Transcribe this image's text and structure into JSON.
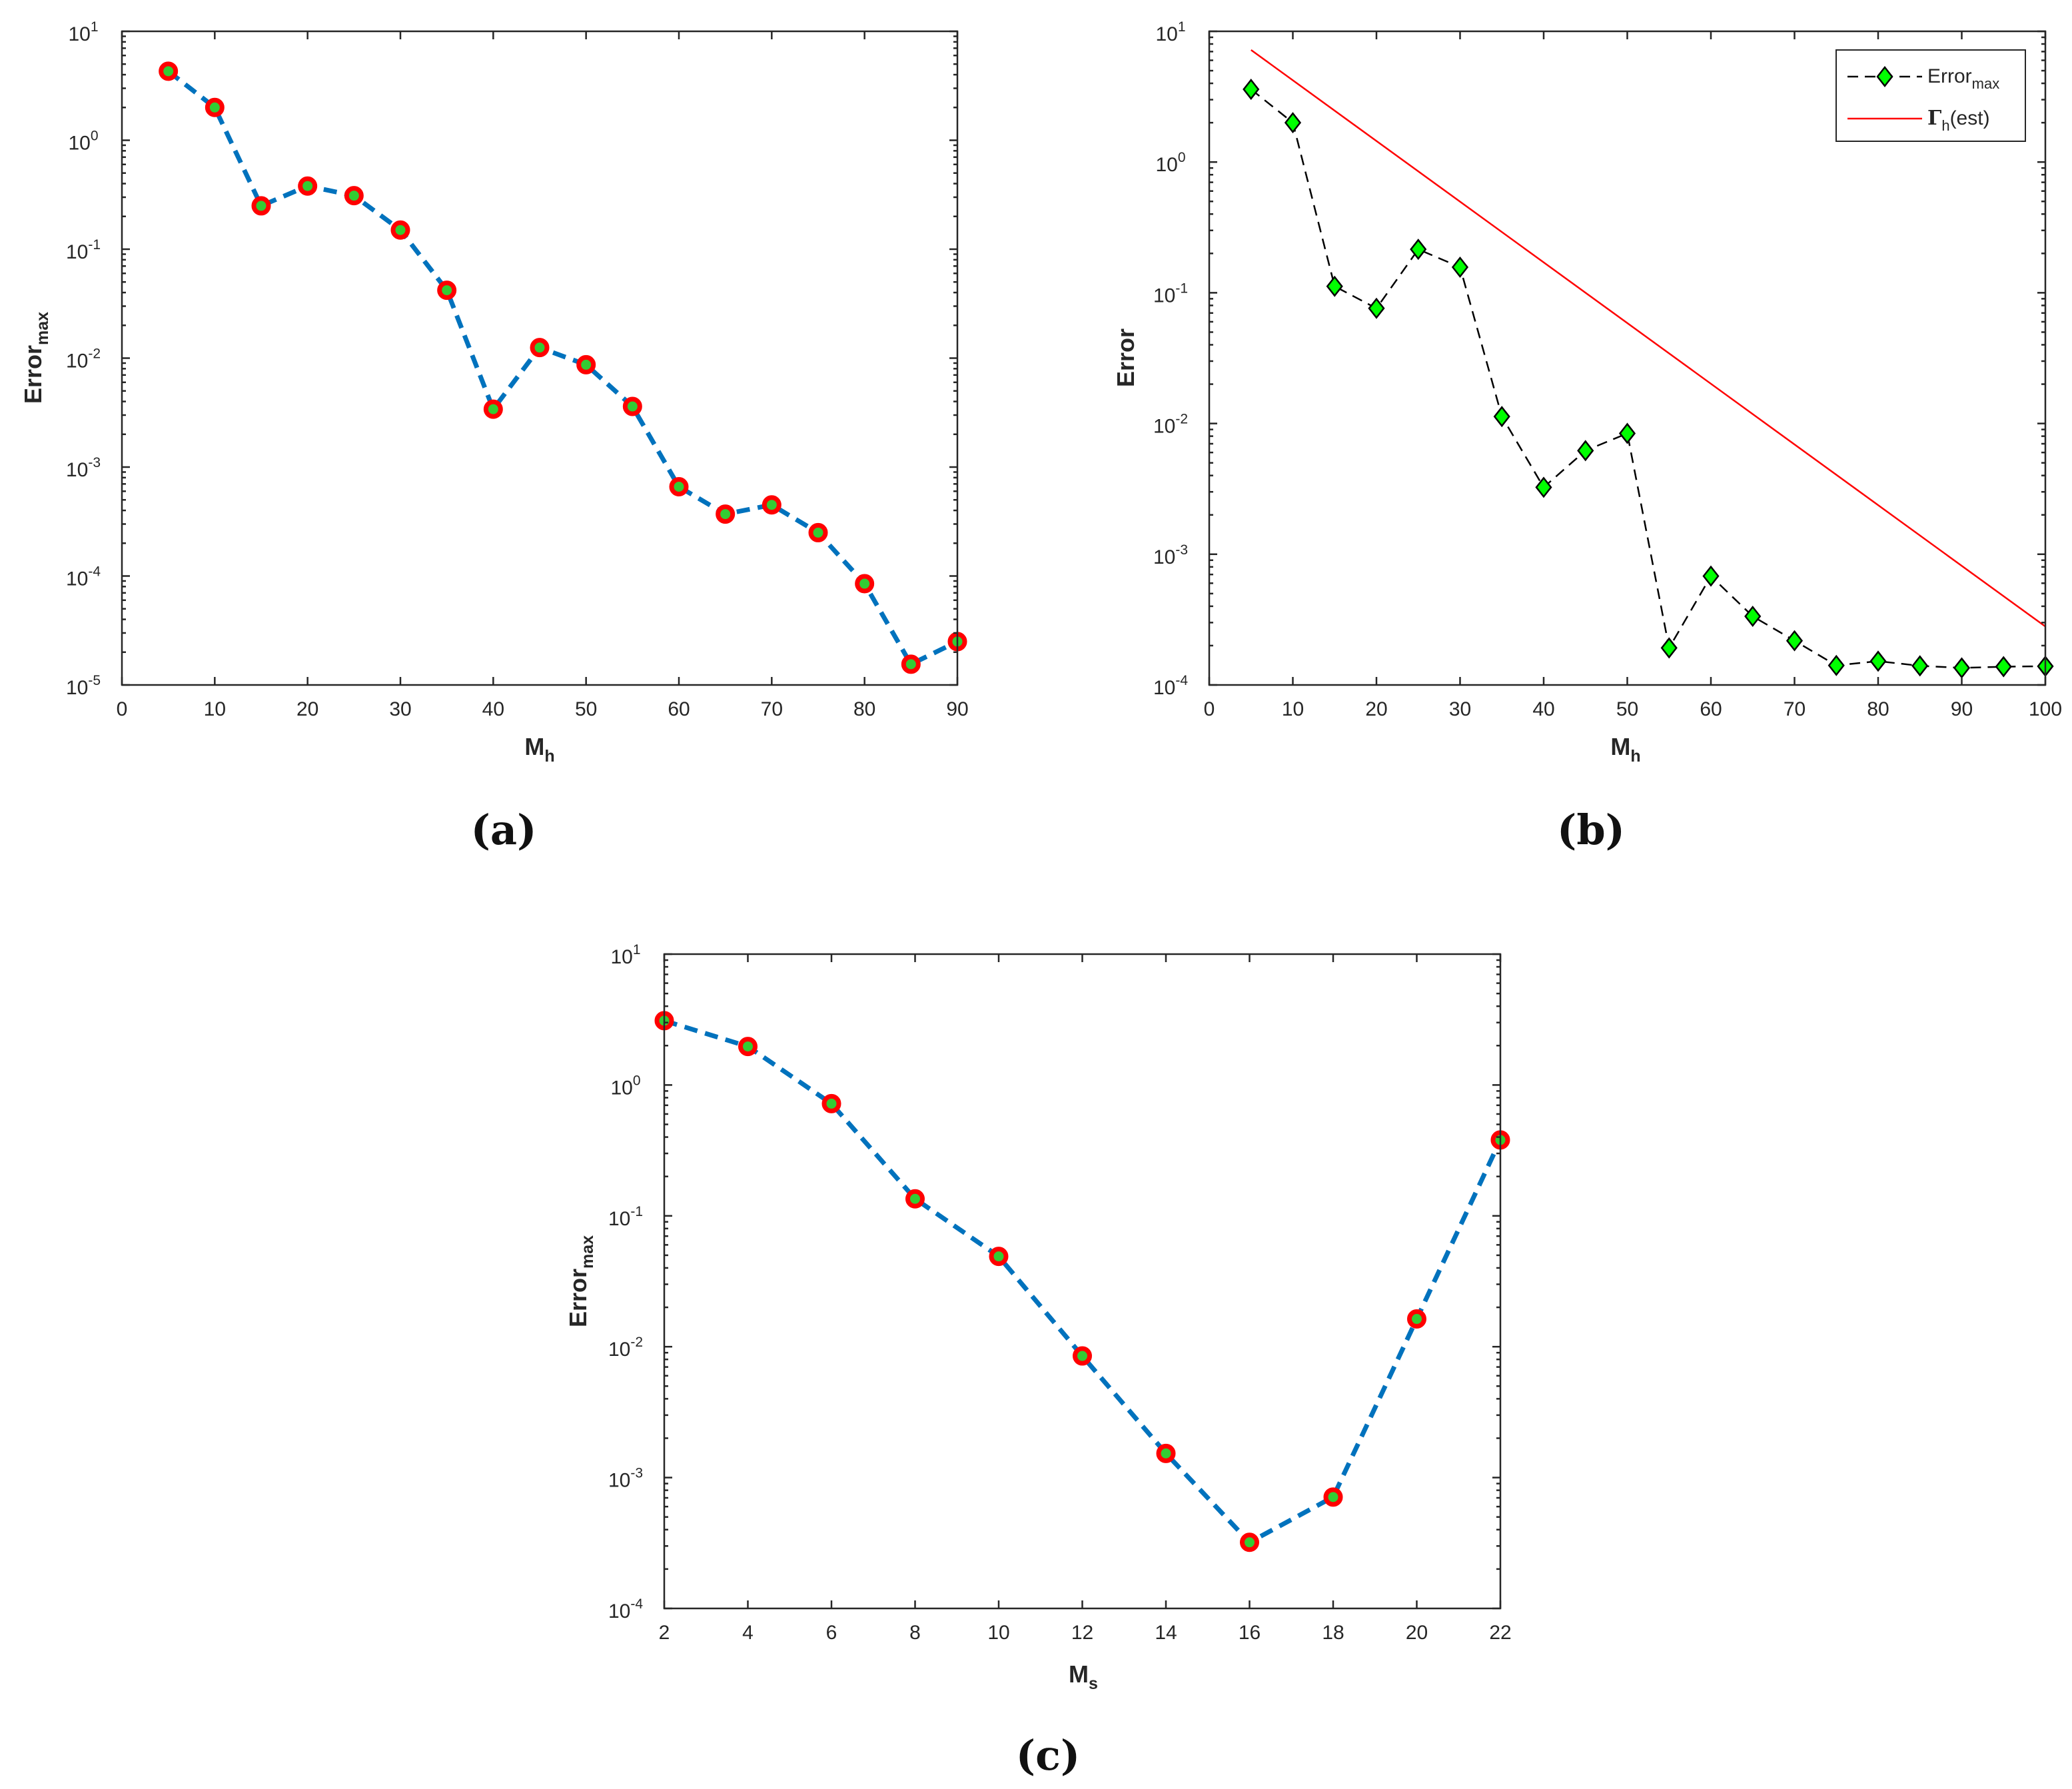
{
  "colors": {
    "dashed_line": "#0072BD",
    "marker_edge": "#FF0000",
    "marker_fill": "#33CC33",
    "diamond_fill": "#00FF00",
    "black": "#000000",
    "estimate_line": "#FF0000"
  },
  "chart_data": [
    {
      "id": "a",
      "type": "line",
      "panel_label": "(a)",
      "yscale": "log",
      "xlabel": {
        "main": "M",
        "sub": "h"
      },
      "ylabel": {
        "main": "Error",
        "sub": "max"
      },
      "xlim": [
        0,
        90
      ],
      "xticks": [
        "0",
        "10",
        "20",
        "30",
        "40",
        "50",
        "60",
        "70",
        "80",
        "90"
      ],
      "ylim": [
        1e-05,
        10
      ],
      "yticks": [
        {
          "base": "10",
          "exp": "-5"
        },
        {
          "base": "10",
          "exp": "-4"
        },
        {
          "base": "10",
          "exp": "-3"
        },
        {
          "base": "10",
          "exp": "-2"
        },
        {
          "base": "10",
          "exp": "-1"
        },
        {
          "base": "10",
          "exp": "0"
        },
        {
          "base": "10",
          "exp": "1"
        }
      ],
      "series": [
        {
          "name": "Error_max",
          "style": "dashed-circles",
          "x": [
            5,
            10,
            15,
            20,
            25,
            30,
            35,
            40,
            45,
            50,
            55,
            60,
            65,
            70,
            75,
            80,
            85,
            90
          ],
          "y": [
            4.3,
            2.0,
            0.25,
            0.38,
            0.31,
            0.15,
            0.042,
            0.0034,
            0.0125,
            0.0087,
            0.0036,
            0.00066,
            0.00037,
            0.00045,
            0.00025,
            8.5e-05,
            1.55e-05,
            2.5e-05
          ]
        }
      ]
    },
    {
      "id": "b",
      "type": "line",
      "panel_label": "(b)",
      "yscale": "log",
      "xlabel": {
        "main": "M",
        "sub": "h"
      },
      "ylabel": {
        "main": "Error",
        "sub": ""
      },
      "xlim": [
        0,
        100
      ],
      "xticks": [
        "0",
        "10",
        "20",
        "30",
        "40",
        "50",
        "60",
        "70",
        "80",
        "90",
        "100"
      ],
      "ylim": [
        0.0001,
        10
      ],
      "yticks": [
        {
          "base": "10",
          "exp": "-4"
        },
        {
          "base": "10",
          "exp": "-3"
        },
        {
          "base": "10",
          "exp": "-2"
        },
        {
          "base": "10",
          "exp": "-1"
        },
        {
          "base": "10",
          "exp": "0"
        },
        {
          "base": "10",
          "exp": "1"
        }
      ],
      "legend": {
        "position": "top-right",
        "entries": [
          {
            "main": "Error",
            "sub": "max",
            "suffix": ""
          },
          {
            "main": "Γ",
            "sub": "h",
            "suffix": "(est)"
          }
        ]
      },
      "series": [
        {
          "name": "Error_max",
          "style": "dashed-diamonds",
          "x": [
            5,
            10,
            15,
            20,
            25,
            30,
            35,
            40,
            45,
            50,
            55,
            60,
            65,
            70,
            75,
            80,
            85,
            90,
            95,
            100
          ],
          "y": [
            3.6,
            2.0,
            0.112,
            0.076,
            0.215,
            0.157,
            0.0113,
            0.00325,
            0.0062,
            0.0084,
            0.000192,
            0.00068,
            0.000335,
            0.000218,
            0.000141,
            0.000152,
            0.00014,
            0.000135,
            0.000138,
            0.000139
          ]
        },
        {
          "name": "Gamma_h(est)",
          "style": "solid-red",
          "x": [
            5,
            100
          ],
          "y": [
            7.2,
            0.00028
          ]
        }
      ]
    },
    {
      "id": "c",
      "type": "line",
      "panel_label": "(c)",
      "yscale": "log",
      "xlabel": {
        "main": "M",
        "sub": "s"
      },
      "ylabel": {
        "main": "Error",
        "sub": "max"
      },
      "xlim": [
        2,
        22
      ],
      "xticks": [
        "2",
        "4",
        "6",
        "8",
        "10",
        "12",
        "14",
        "16",
        "18",
        "20",
        "22"
      ],
      "ylim": [
        0.0001,
        10
      ],
      "yticks": [
        {
          "base": "10",
          "exp": "-4"
        },
        {
          "base": "10",
          "exp": "-3"
        },
        {
          "base": "10",
          "exp": "-2"
        },
        {
          "base": "10",
          "exp": "-1"
        },
        {
          "base": "10",
          "exp": "0"
        },
        {
          "base": "10",
          "exp": "1"
        }
      ],
      "series": [
        {
          "name": "Error_max",
          "style": "dashed-circles",
          "x": [
            2,
            4,
            6,
            8,
            10,
            12,
            14,
            16,
            18,
            20,
            22
          ],
          "y": [
            3.1,
            1.97,
            0.72,
            0.135,
            0.049,
            0.0085,
            0.00153,
            0.00032,
            0.00071,
            0.0163,
            0.38
          ]
        }
      ]
    }
  ]
}
